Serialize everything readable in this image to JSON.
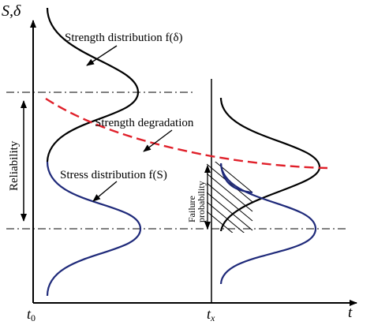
{
  "axes": {
    "y_label": "S,δ",
    "x_label": "t",
    "t0_label": "t",
    "t0_sub": "0",
    "tx_label": "t",
    "tx_sub": "x"
  },
  "labels": {
    "strength_distribution": "Strength distribution f(δ)",
    "strength_degradation": "Strength degradation",
    "stress_distribution": "Stress distribution f(S)",
    "reliability": "Reliability",
    "failure_probability_line1": "Failure",
    "failure_probability_line2": "probability"
  },
  "colors": {
    "strength": "#000000",
    "stress": "#1f2a7a",
    "degradation": "#e0202a",
    "axis": "#000000"
  }
}
